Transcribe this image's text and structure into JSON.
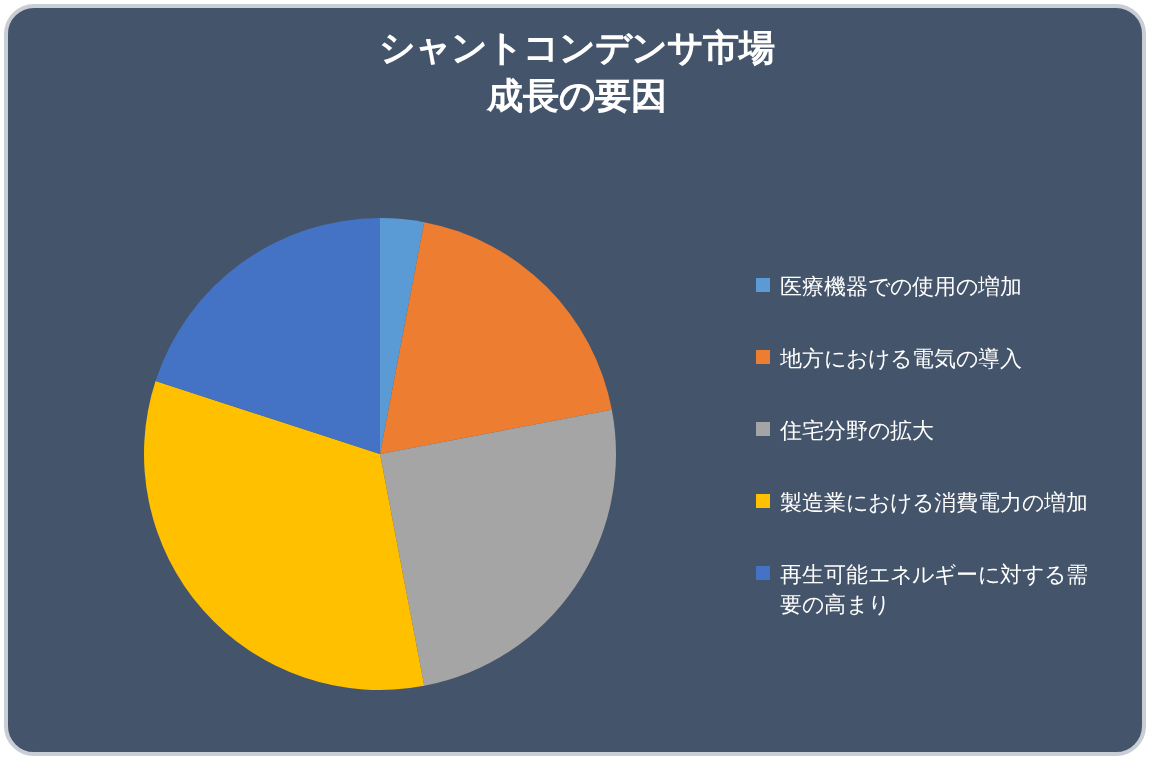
{
  "chart_data": {
    "type": "pie",
    "title": "シャントコンデンサ市場成長の要因",
    "categories": [
      "医療機器での使用の増加",
      "地方における電気の導入",
      "住宅分野の拡大",
      "製造業における消費電力の増加",
      "再生可能エネルギーに対する需要の高まり"
    ],
    "values": [
      3,
      19,
      25,
      33,
      20
    ],
    "colors": [
      "#5b9bd5",
      "#ed7d31",
      "#a5a5a5",
      "#ffc000",
      "#4472c4"
    ],
    "legend": "right"
  }
}
